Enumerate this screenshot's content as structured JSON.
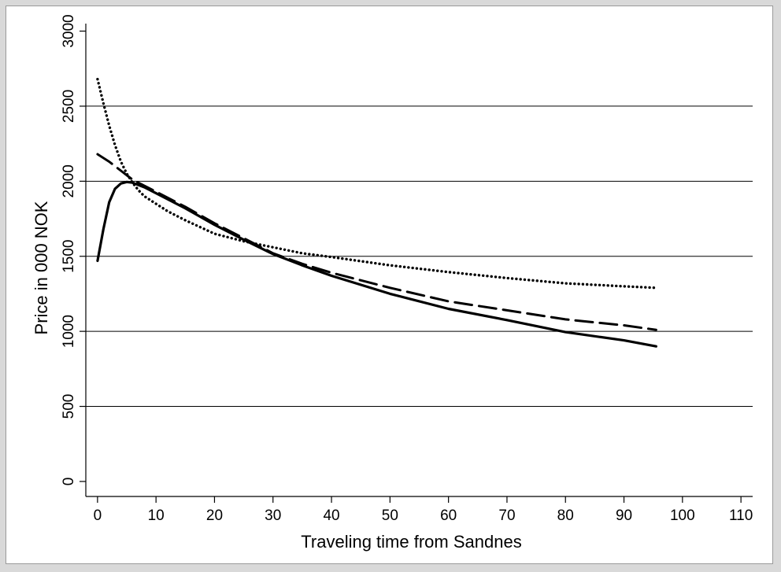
{
  "chart_data": {
    "type": "line",
    "title": "",
    "xlabel": "Traveling time from Sandnes",
    "ylabel": "Price in 000 NOK",
    "xlim": [
      -2,
      112
    ],
    "ylim": [
      -100,
      3050
    ],
    "xticks": [
      0,
      10,
      20,
      30,
      40,
      50,
      60,
      70,
      80,
      90,
      100,
      110
    ],
    "yticks": [
      0,
      500,
      1000,
      1500,
      2000,
      2500,
      3000
    ],
    "horizontal_gridlines": [
      500,
      1000,
      1500,
      2000,
      2500
    ],
    "legend": "none",
    "series": [
      {
        "style": "solid",
        "color": "#000000",
        "x": [
          0,
          1,
          2,
          3,
          4,
          5,
          6,
          8,
          10,
          15,
          20,
          25,
          30,
          35,
          40,
          50,
          60,
          70,
          80,
          90,
          95.5
        ],
        "y": [
          1470,
          1680,
          1860,
          1950,
          1985,
          1995,
          1990,
          1960,
          1920,
          1820,
          1710,
          1610,
          1515,
          1440,
          1370,
          1250,
          1150,
          1075,
          995,
          940,
          900
        ]
      },
      {
        "style": "dashed",
        "color": "#000000",
        "x": [
          0,
          2,
          4,
          6,
          8,
          10,
          15,
          20,
          25,
          30,
          35,
          40,
          50,
          60,
          70,
          80,
          90,
          95.5
        ],
        "y": [
          2180,
          2130,
          2070,
          2010,
          1970,
          1930,
          1830,
          1720,
          1620,
          1520,
          1450,
          1390,
          1290,
          1200,
          1140,
          1080,
          1040,
          1010
        ]
      },
      {
        "style": "dotted",
        "color": "#000000",
        "x": [
          0,
          1,
          2,
          3,
          4,
          5,
          6,
          7,
          8,
          10,
          12,
          15,
          20,
          25,
          30,
          35,
          40,
          50,
          60,
          70,
          80,
          90,
          95.5
        ],
        "y": [
          2680,
          2520,
          2370,
          2240,
          2130,
          2050,
          1990,
          1940,
          1900,
          1850,
          1800,
          1740,
          1650,
          1600,
          1560,
          1520,
          1495,
          1440,
          1395,
          1355,
          1320,
          1300,
          1290
        ]
      }
    ]
  }
}
